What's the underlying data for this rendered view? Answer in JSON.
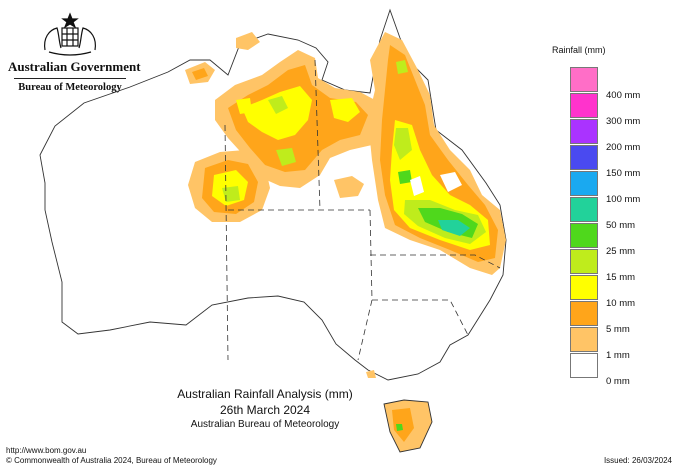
{
  "header": {
    "government": "Australian Government",
    "bureau": "Bureau of Meteorology"
  },
  "legend": {
    "title": "Rainfall (mm)",
    "bins": [
      {
        "label": "400 mm",
        "color": "#ff6ec7"
      },
      {
        "label": "300 mm",
        "color": "#ff33cc"
      },
      {
        "label": "200 mm",
        "color": "#aa33ff"
      },
      {
        "label": "150 mm",
        "color": "#4a4af0"
      },
      {
        "label": "100 mm",
        "color": "#1aa9f0"
      },
      {
        "label": "50 mm",
        "color": "#22d29a"
      },
      {
        "label": "25 mm",
        "color": "#4fd81c"
      },
      {
        "label": "15 mm",
        "color": "#bfec1c"
      },
      {
        "label": "10 mm",
        "color": "#ffff00"
      },
      {
        "label": "5 mm",
        "color": "#ffa51a"
      },
      {
        "label": "1 mm",
        "color": "#ffc466"
      },
      {
        "label": "0 mm",
        "color": "#ffffff"
      }
    ]
  },
  "title": {
    "line1": "Australian Rainfall Analysis (mm)",
    "line2": "26th March 2024",
    "line3": "Australian Bureau of Meteorology"
  },
  "footer": {
    "url": "http://www.bom.gov.au",
    "copyright": "© Commonwealth of Australia 2024, Bureau of Meteorology",
    "issued": "Issued: 26/03/2024"
  },
  "map": {
    "land_color": "#ffffff",
    "outline_color": "#333333"
  }
}
